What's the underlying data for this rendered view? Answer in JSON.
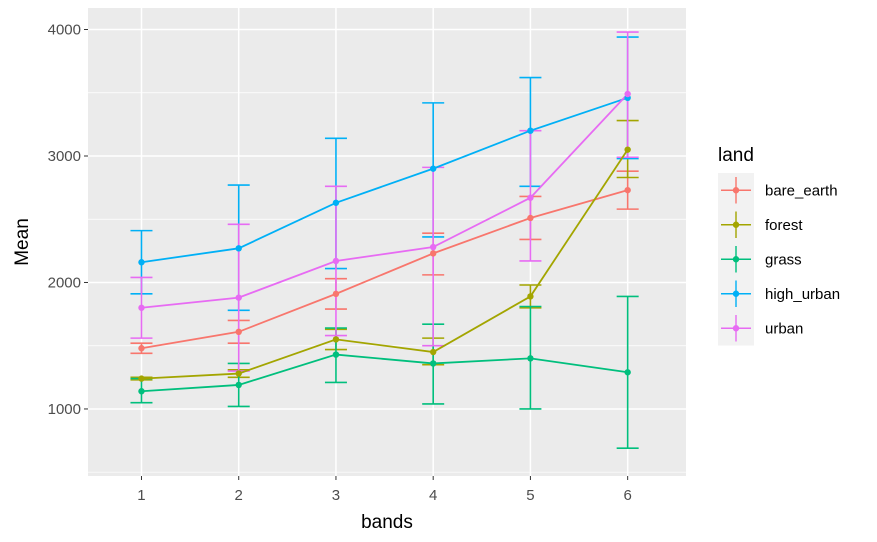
{
  "chart_data": {
    "type": "line",
    "xlabel": "bands",
    "ylabel": "Mean",
    "x": [
      1,
      2,
      3,
      4,
      5,
      6
    ],
    "xlim": [
      0.45,
      6.6
    ],
    "ylim": [
      470,
      4170
    ],
    "yticks": [
      1000,
      2000,
      3000,
      4000
    ],
    "grid": true,
    "legend": {
      "title": "land",
      "position": "right"
    },
    "series": [
      {
        "name": "bare_earth",
        "color": "#F8766D",
        "values": [
          1480,
          1610,
          1910,
          2230,
          2510,
          2730
        ],
        "lower": [
          1440,
          1520,
          1790,
          2060,
          2340,
          2580
        ],
        "upper": [
          1520,
          1700,
          2030,
          2390,
          2680,
          2880
        ]
      },
      {
        "name": "forest",
        "color": "#A3A500",
        "values": [
          1240,
          1280,
          1550,
          1450,
          1890,
          3050
        ],
        "lower": [
          1230,
          1250,
          1470,
          1350,
          1800,
          2830
        ],
        "upper": [
          1250,
          1310,
          1630,
          1560,
          1980,
          3280
        ]
      },
      {
        "name": "grass",
        "color": "#00BF7D",
        "values": [
          1140,
          1190,
          1430,
          1360,
          1400,
          1290
        ],
        "lower": [
          1050,
          1020,
          1210,
          1040,
          1000,
          690
        ],
        "upper": [
          1240,
          1360,
          1640,
          1670,
          1810,
          1890
        ]
      },
      {
        "name": "high_urban",
        "color": "#00B0F6",
        "values": [
          2160,
          2270,
          2630,
          2900,
          3200,
          3460
        ],
        "lower": [
          1910,
          1780,
          2110,
          2360,
          2760,
          2980
        ],
        "upper": [
          2410,
          2770,
          3140,
          3420,
          3620,
          3940
        ]
      },
      {
        "name": "urban",
        "color": "#E76BF3",
        "values": [
          1800,
          1880,
          2170,
          2280,
          2670,
          3490
        ],
        "lower": [
          1560,
          1300,
          1580,
          1500,
          2170,
          2990
        ],
        "upper": [
          2040,
          2460,
          2760,
          2910,
          3200,
          3980
        ]
      }
    ]
  }
}
